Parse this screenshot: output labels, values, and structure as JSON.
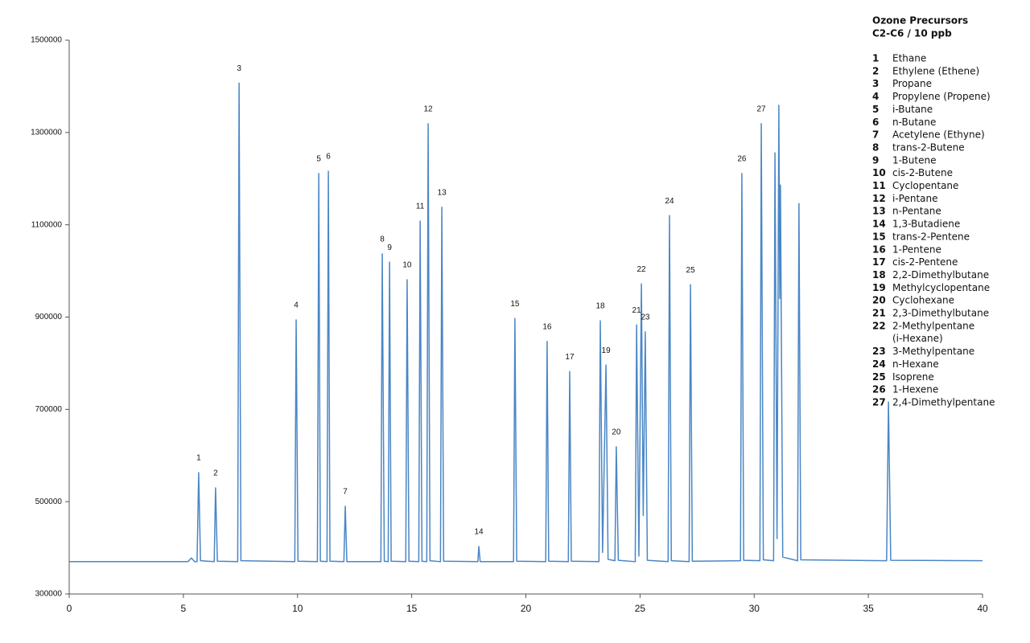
{
  "chart_data": {
    "type": "line",
    "legend_title": [
      "Ozone Precursors",
      "C2-C6 / 10 ppb"
    ],
    "xlim": [
      0,
      40
    ],
    "xticks": [
      0,
      5,
      10,
      15,
      20,
      25,
      30,
      35,
      40
    ],
    "ylim": [
      300000,
      1500000
    ],
    "yticks": [
      300000,
      500000,
      700000,
      900000,
      1100000,
      1300000,
      1500000
    ],
    "grid": false,
    "series": [
      {
        "color": "#4a86c5",
        "x": [
          0,
          5.2,
          5.35,
          5.5,
          5.6,
          5.67,
          5.75,
          6.35,
          6.41,
          6.49,
          7.38,
          7.44,
          7.52,
          9.88,
          9.94,
          10.02,
          10.87,
          10.93,
          11.0,
          11.29,
          11.35,
          11.42,
          12.03,
          12.09,
          12.16,
          13.65,
          13.71,
          13.8,
          13.97,
          14.03,
          14.1,
          14.74,
          14.8,
          14.88,
          15.31,
          15.37,
          15.45,
          15.66,
          15.72,
          15.8,
          16.26,
          16.32,
          16.4,
          17.9,
          17.94,
          18.0,
          19.46,
          19.52,
          19.6,
          20.87,
          20.93,
          21.0,
          21.86,
          21.92,
          21.99,
          23.2,
          23.26,
          23.36,
          23.51,
          23.6,
          23.9,
          23.96,
          24.05,
          24.79,
          24.85,
          24.95,
          25.06,
          25.14,
          25.23,
          25.32,
          26.23,
          26.29,
          26.37,
          27.15,
          27.21,
          27.29,
          29.4,
          29.46,
          29.54,
          30.25,
          30.31,
          30.4,
          30.85,
          30.91,
          31.0,
          31.08,
          31.12,
          31.15,
          31.25,
          31.9,
          31.96,
          32.04,
          35.8,
          35.88,
          35.98,
          40
        ],
        "values": [
          370000,
          370000,
          378000,
          370000,
          370000,
          563000,
          372000,
          370000,
          530000,
          371000,
          370000,
          1407000,
          372000,
          370000,
          894000,
          371000,
          370000,
          1211000,
          371000,
          370000,
          1216000,
          371000,
          370000,
          490000,
          370000,
          370000,
          1037000,
          371000,
          370000,
          1019000,
          371000,
          370000,
          981000,
          371000,
          370000,
          1108000,
          371000,
          370000,
          1319000,
          372000,
          370000,
          1138000,
          371000,
          370000,
          403000,
          370000,
          370000,
          897000,
          371000,
          370000,
          847000,
          371000,
          370000,
          782000,
          371000,
          370000,
          892000,
          390000,
          796000,
          375000,
          372000,
          619000,
          373000,
          370000,
          883000,
          382000,
          972000,
          470000,
          868000,
          373000,
          370000,
          1120000,
          372000,
          370000,
          970000,
          371000,
          372000,
          1211000,
          373000,
          372000,
          1319000,
          374000,
          372000,
          1256000,
          420000,
          1359000,
          940000,
          1186000,
          380000,
          372000,
          1146000,
          374000,
          372000,
          716000,
          373000,
          372000
        ]
      }
    ],
    "peaks": [
      {
        "label": "1",
        "x": 5.67,
        "value": 563000
      },
      {
        "label": "2",
        "x": 6.41,
        "value": 530000
      },
      {
        "label": "3",
        "x": 7.44,
        "value": 1407000
      },
      {
        "label": "4",
        "x": 9.94,
        "value": 894000
      },
      {
        "label": "5",
        "x": 10.93,
        "value": 1211000
      },
      {
        "label": "6",
        "x": 11.35,
        "value": 1216000
      },
      {
        "label": "7",
        "x": 12.09,
        "value": 490000
      },
      {
        "label": "8",
        "x": 13.71,
        "value": 1037000
      },
      {
        "label": "9",
        "x": 14.03,
        "value": 1019000
      },
      {
        "label": "10",
        "x": 14.8,
        "value": 981000
      },
      {
        "label": "11",
        "x": 15.37,
        "value": 1108000
      },
      {
        "label": "12",
        "x": 15.72,
        "value": 1319000
      },
      {
        "label": "13",
        "x": 16.32,
        "value": 1138000
      },
      {
        "label": "14",
        "x": 17.94,
        "value": 403000
      },
      {
        "label": "15",
        "x": 19.52,
        "value": 897000
      },
      {
        "label": "16",
        "x": 20.93,
        "value": 847000
      },
      {
        "label": "17",
        "x": 21.92,
        "value": 782000
      },
      {
        "label": "18",
        "x": 23.26,
        "value": 892000
      },
      {
        "label": "19",
        "x": 23.51,
        "value": 796000
      },
      {
        "label": "20",
        "x": 23.96,
        "value": 619000
      },
      {
        "label": "21",
        "x": 24.85,
        "value": 883000
      },
      {
        "label": "22",
        "x": 25.06,
        "value": 972000
      },
      {
        "label": "23",
        "x": 25.23,
        "value": 868000
      },
      {
        "label": "24",
        "x": 26.29,
        "value": 1120000
      },
      {
        "label": "25",
        "x": 27.21,
        "value": 970000
      },
      {
        "label": "26",
        "x": 29.46,
        "value": 1211000
      },
      {
        "label": "27",
        "x": 30.31,
        "value": 1319000
      }
    ],
    "compounds": [
      [
        "Ethane"
      ],
      [
        "Ethylene (Ethene)"
      ],
      [
        "Propane"
      ],
      [
        "Propylene (Propene)"
      ],
      [
        "i-Butane"
      ],
      [
        "n-Butane"
      ],
      [
        "Acetylene (Ethyne)"
      ],
      [
        "trans-2-Butene"
      ],
      [
        "1-Butene"
      ],
      [
        "cis-2-Butene"
      ],
      [
        "Cyclopentane"
      ],
      [
        "i-Pentane"
      ],
      [
        "n-Pentane"
      ],
      [
        "1,3-Butadiene"
      ],
      [
        "trans-2-Pentene"
      ],
      [
        "1-Pentene"
      ],
      [
        "cis-2-Pentene"
      ],
      [
        "2,2-Dimethylbutane"
      ],
      [
        "Methylcyclopentane"
      ],
      [
        "Cyclohexane"
      ],
      [
        "2,3-Dimethylbutane"
      ],
      [
        "2-Methylpentane",
        "(i-Hexane)"
      ],
      [
        "3-Methylpentane"
      ],
      [
        "n-Hexane"
      ],
      [
        "Isoprene"
      ],
      [
        "1-Hexene"
      ],
      [
        "2,4-Dimethylpentane"
      ]
    ]
  }
}
